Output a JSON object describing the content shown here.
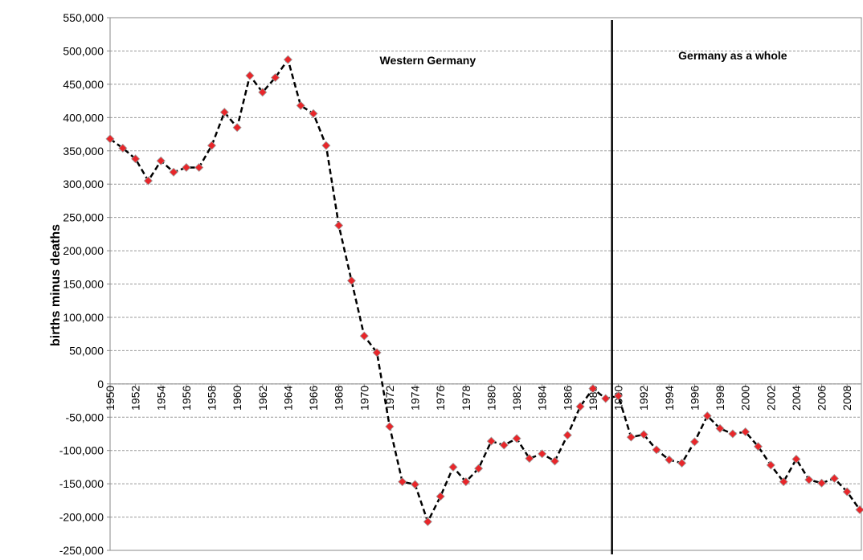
{
  "chart_data": {
    "type": "line",
    "ylabel": "births minus deaths",
    "x": [
      1950,
      1951,
      1952,
      1953,
      1954,
      1955,
      1956,
      1957,
      1958,
      1959,
      1960,
      1961,
      1962,
      1963,
      1964,
      1965,
      1966,
      1967,
      1968,
      1969,
      1970,
      1971,
      1972,
      1973,
      1974,
      1975,
      1976,
      1977,
      1978,
      1979,
      1980,
      1981,
      1982,
      1983,
      1984,
      1985,
      1986,
      1987,
      1988,
      1989,
      1990,
      1991,
      1992,
      1993,
      1994,
      1995,
      1996,
      1997,
      1998,
      1999,
      2000,
      2001,
      2002,
      2003,
      2004,
      2005,
      2006,
      2007,
      2008,
      2009
    ],
    "series": [
      {
        "color": "#e8262a",
        "values": [
          368000,
          354000,
          338000,
          305000,
          335000,
          318000,
          325000,
          325000,
          358000,
          408000,
          385000,
          463000,
          438000,
          460000,
          487000,
          418000,
          406000,
          358000,
          238000,
          155000,
          72000,
          47000,
          -64000,
          -147000,
          -151000,
          -207000,
          -169000,
          -125000,
          -147000,
          -127000,
          -86000,
          -92000,
          -82000,
          -112000,
          -105000,
          -116000,
          -77000,
          -34000,
          -7000,
          -22000,
          -18000,
          -80000,
          -76000,
          -99000,
          -114000,
          -119000,
          -87000,
          -48000,
          -67000,
          -75000,
          -72000,
          -94000,
          -122000,
          -147000,
          -113000,
          -144000,
          -149000,
          -142000,
          -162000,
          -189000
        ]
      }
    ],
    "xlim": [
      1950,
      2009
    ],
    "xticks": [
      1950,
      1952,
      1954,
      1956,
      1958,
      1960,
      1962,
      1964,
      1966,
      1968,
      1970,
      1972,
      1974,
      1976,
      1978,
      1980,
      1982,
      1984,
      1986,
      1988,
      1990,
      1992,
      1994,
      1996,
      1998,
      2000,
      2002,
      2004,
      2006,
      2008
    ],
    "ylim": [
      -250000,
      550000
    ],
    "yticks": [
      {
        "value": -250000,
        "label": "-250,000"
      },
      {
        "value": -200000,
        "label": "-200,000"
      },
      {
        "value": -150000,
        "label": "-150,000"
      },
      {
        "value": -100000,
        "label": "-100,000"
      },
      {
        "value": -50000,
        "label": "-50,000"
      },
      0,
      {
        "value": 50000,
        "label": "50,000"
      },
      {
        "value": 100000,
        "label": "100,000"
      },
      {
        "value": 150000,
        "label": "150,000"
      },
      {
        "value": 200000,
        "label": "200,000"
      },
      {
        "value": 250000,
        "label": "250,000"
      },
      {
        "value": 300000,
        "label": "300,000"
      },
      {
        "value": 350000,
        "label": "350,000"
      },
      {
        "value": 400000,
        "label": "400,000"
      },
      {
        "value": 450000,
        "label": "450,000"
      },
      {
        "value": 500000,
        "label": "500,000"
      },
      {
        "value": 550000,
        "label": "550,000"
      }
    ],
    "grid": true,
    "annotations": [
      {
        "text": "Western Germany",
        "x": 1975,
        "y": 480000
      },
      {
        "text": "Germany as a whole",
        "x": 1999,
        "y": 487000
      }
    ],
    "reference_line_x": 1989.5
  }
}
